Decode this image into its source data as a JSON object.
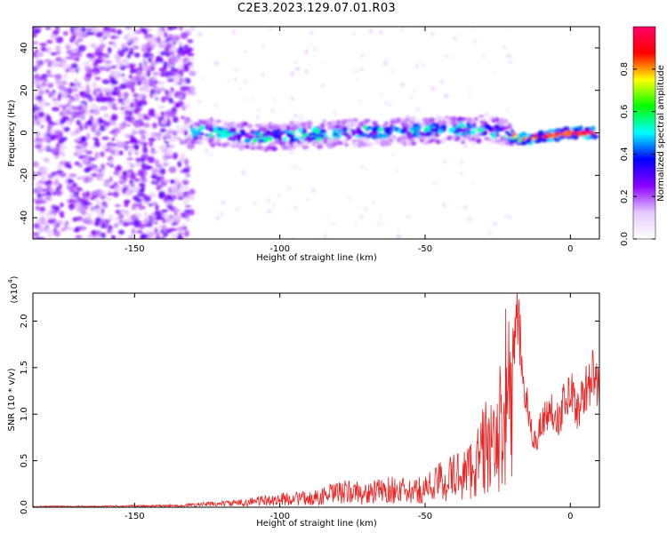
{
  "title": "C2E3.2023.129.07.01.R03",
  "chart_data": [
    {
      "type": "heatmap",
      "xlabel": "Height of straight line (km)",
      "ylabel": "Frequency (Hz)",
      "xlim": [
        -185,
        10
      ],
      "ylim": [
        -50,
        50
      ],
      "xticks": [
        "-150",
        "-100",
        "-50",
        "0"
      ],
      "yticks": [
        "-40",
        "-20",
        "0",
        "20",
        "40"
      ],
      "colorbar": {
        "label": "Normalized spectral amplitude",
        "range": [
          0.0,
          1.0
        ],
        "ticks": [
          "0.0",
          "0.2",
          "0.4",
          "0.6",
          "0.8"
        ],
        "colors": [
          "#ffffff",
          "#e6c8ff",
          "#8a00ff",
          "#0000ff",
          "#00ffff",
          "#00ff00",
          "#ffff00",
          "#ff0000",
          "#ff0066"
        ]
      },
      "ridge": {
        "x": [
          -128,
          -110,
          -90,
          -70,
          -50,
          -30,
          -22,
          -18,
          -10,
          0,
          9
        ],
        "frequency": [
          1,
          -2,
          -1,
          0,
          1,
          2,
          0,
          -3,
          -2,
          0,
          0
        ]
      },
      "regions": [
        {
          "x_range": [
            -185,
            -130
          ],
          "description_level": 0.25
        },
        {
          "x_range": [
            -130,
            -20
          ],
          "description_level": 0.45
        },
        {
          "x_range": [
            -20,
            10
          ],
          "description_level": 0.9
        }
      ]
    },
    {
      "type": "line",
      "xlabel": "Height of straight line (km)",
      "ylabel": "SNR (10 * v/v)",
      "yscale_label": "(x10",
      "yscale_exp": "4",
      "xlim": [
        -185,
        10
      ],
      "ylim": [
        0,
        23000
      ],
      "xticks": [
        "-150",
        "-100",
        "-50",
        "0"
      ],
      "yticks": [
        "0.0",
        "0.5",
        "1.0",
        "1.5",
        "2.0"
      ],
      "color": "#ee2222",
      "series": [
        {
          "x": [
            -185,
            -160,
            -135,
            -125,
            -115,
            -108,
            -100,
            -95,
            -90,
            -85,
            -80,
            -75,
            -70,
            -65,
            -60,
            -55,
            -50,
            -45,
            -40,
            -35,
            -32,
            -30,
            -28,
            -26,
            -24,
            -22,
            -20,
            -18,
            -16,
            -14,
            -12,
            -10,
            -8,
            -6,
            -4,
            -2,
            0,
            2,
            4,
            6,
            8,
            10
          ],
          "values": [
            150,
            200,
            300,
            600,
            800,
            1200,
            1500,
            1800,
            1600,
            2200,
            2800,
            3000,
            2600,
            3200,
            3500,
            2800,
            3600,
            5000,
            6000,
            7000,
            9000,
            11000,
            13000,
            10000,
            16000,
            23000,
            18000,
            21000,
            14000,
            9000,
            7500,
            9500,
            10500,
            11000,
            10000,
            12000,
            13500,
            11000,
            12000,
            14000,
            15000,
            12500
          ]
        }
      ]
    }
  ]
}
